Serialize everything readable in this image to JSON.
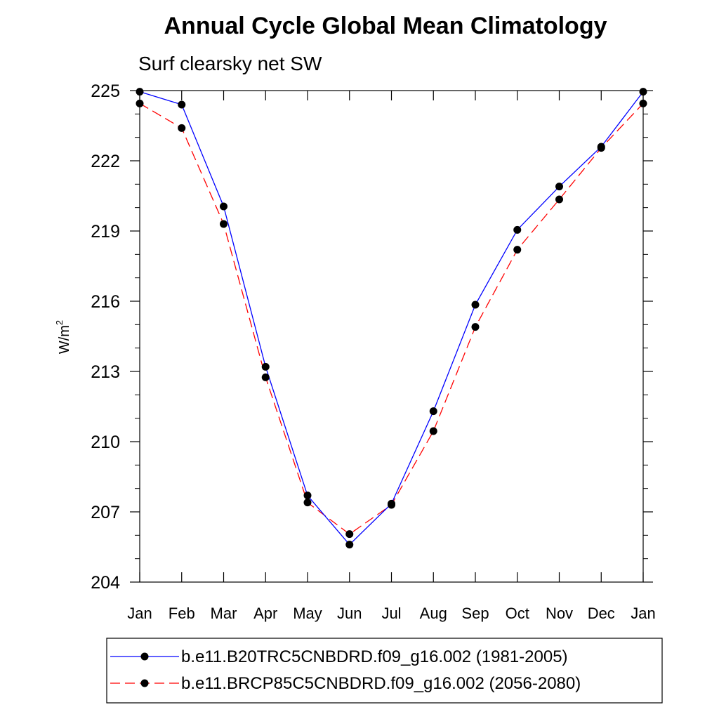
{
  "chart_data": {
    "type": "line",
    "title": "Annual Cycle Global Mean Climatology",
    "subtitle": "Surf clearsky net SW",
    "ylabel": "W/m",
    "ylabel_superscript": "2",
    "xlabel": "",
    "categories": [
      "Jan",
      "Feb",
      "Mar",
      "Apr",
      "May",
      "Jun",
      "Jul",
      "Aug",
      "Sep",
      "Oct",
      "Nov",
      "Dec",
      "Jan"
    ],
    "ylim": [
      204,
      225
    ],
    "yticks": [
      "204",
      "207",
      "210",
      "213",
      "216",
      "219",
      "222",
      "225"
    ],
    "grid": false,
    "legend_position": "bottom",
    "series": [
      {
        "name": "b.e11.B20TRC5CNBDRD.f09_g16.002 (1981-2005)",
        "color": "#0000ff",
        "dash": "solid",
        "marker": "filled-circle",
        "values": [
          224.95,
          224.4,
          220.05,
          213.2,
          207.7,
          205.6,
          207.35,
          211.3,
          215.85,
          219.05,
          220.9,
          222.6,
          224.95
        ]
      },
      {
        "name": "b.e11.BRCP85C5CNBDRD.f09_g16.002 (2056-2080)",
        "color": "#ff0000",
        "dash": "dashed",
        "marker": "filled-circle",
        "values": [
          224.45,
          223.4,
          219.3,
          212.75,
          207.4,
          206.05,
          207.3,
          210.45,
          214.9,
          218.2,
          220.35,
          222.55,
          224.45
        ]
      }
    ]
  }
}
